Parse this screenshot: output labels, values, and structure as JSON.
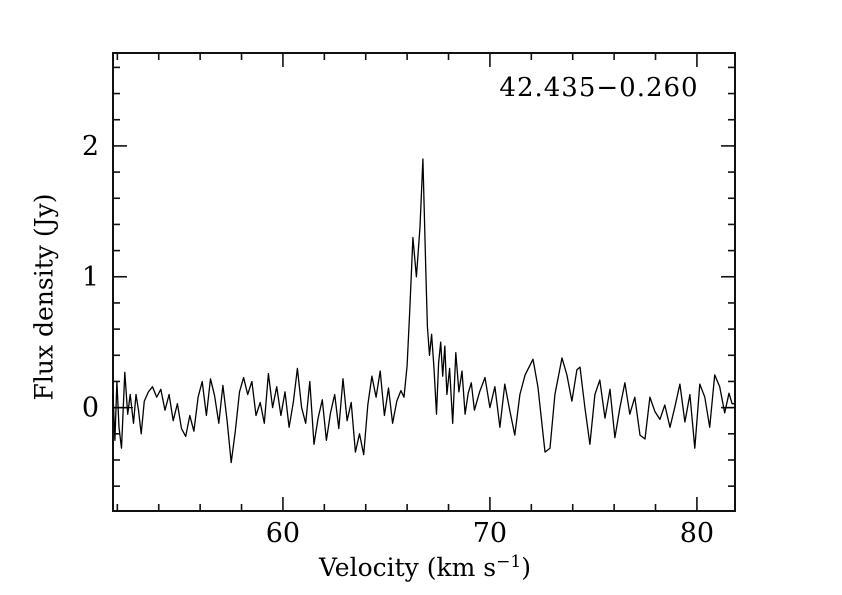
{
  "figure": {
    "title": "42.435−0.260",
    "ylabel": "Flux density (Jy)",
    "xlabel": {
      "pre": "Velocity (km s",
      "sup": "−1",
      "post": ")"
    }
  },
  "chart_data": {
    "type": "line",
    "title": "42.435−0.260",
    "xlabel": "Velocity (km s^-1)",
    "ylabel": "Flux density (Jy)",
    "xlim": [
      51.79,
      81.84
    ],
    "ylim": [
      -0.79,
      2.71
    ],
    "x_major_ticks": [
      {
        "value": 60,
        "label": "60"
      },
      {
        "value": 70,
        "label": "70"
      },
      {
        "value": 80,
        "label": "80"
      }
    ],
    "x_minor_tick_step": 2,
    "y_major_ticks": [
      {
        "value": 0,
        "label": "0"
      },
      {
        "value": 1,
        "label": "1"
      },
      {
        "value": 2,
        "label": "2"
      }
    ],
    "y_minor_tick_step": 0.2,
    "grid": false,
    "legend_position": "none",
    "line_color": "#000000",
    "frame_color": "#111111",
    "background": "#ffffff",
    "zero_level_markers": [
      {
        "v_start": 51.79,
        "v_end": 52.75,
        "flux": 0.0
      },
      {
        "v_start": 81.35,
        "v_end": 81.84,
        "flux": 0.0
      }
    ],
    "series": [
      {
        "name": "spectrum",
        "points": [
          [
            51.79,
            0.1
          ],
          [
            51.88,
            -0.25
          ],
          [
            51.98,
            0.2
          ],
          [
            52.08,
            -0.15
          ],
          [
            52.2,
            -0.31
          ],
          [
            52.36,
            0.27
          ],
          [
            52.5,
            -0.05
          ],
          [
            52.62,
            0.1
          ],
          [
            52.78,
            -0.12
          ],
          [
            52.9,
            0.1
          ],
          [
            53.02,
            -0.02
          ],
          [
            53.15,
            -0.2
          ],
          [
            53.3,
            0.05
          ],
          [
            53.5,
            0.12
          ],
          [
            53.7,
            0.16
          ],
          [
            53.9,
            0.08
          ],
          [
            54.1,
            0.14
          ],
          [
            54.3,
            -0.02
          ],
          [
            54.5,
            0.1
          ],
          [
            54.7,
            -0.1
          ],
          [
            54.9,
            0.03
          ],
          [
            55.1,
            -0.16
          ],
          [
            55.3,
            -0.22
          ],
          [
            55.5,
            -0.06
          ],
          [
            55.7,
            -0.18
          ],
          [
            55.9,
            0.08
          ],
          [
            56.1,
            0.2
          ],
          [
            56.3,
            -0.06
          ],
          [
            56.5,
            0.22
          ],
          [
            56.7,
            0.09
          ],
          [
            56.9,
            -0.12
          ],
          [
            57.1,
            0.17
          ],
          [
            57.3,
            -0.1
          ],
          [
            57.5,
            -0.42
          ],
          [
            57.7,
            -0.18
          ],
          [
            57.9,
            0.12
          ],
          [
            58.1,
            0.23
          ],
          [
            58.3,
            0.1
          ],
          [
            58.5,
            0.2
          ],
          [
            58.7,
            -0.06
          ],
          [
            58.9,
            0.04
          ],
          [
            59.1,
            -0.12
          ],
          [
            59.3,
            0.26
          ],
          [
            59.5,
            0.0
          ],
          [
            59.7,
            0.16
          ],
          [
            59.9,
            -0.06
          ],
          [
            60.1,
            0.12
          ],
          [
            60.3,
            -0.15
          ],
          [
            60.5,
            0.04
          ],
          [
            60.7,
            0.3
          ],
          [
            60.9,
            0.0
          ],
          [
            61.1,
            -0.12
          ],
          [
            61.3,
            0.2
          ],
          [
            61.5,
            -0.28
          ],
          [
            61.7,
            -0.08
          ],
          [
            61.9,
            0.06
          ],
          [
            62.1,
            -0.25
          ],
          [
            62.3,
            -0.04
          ],
          [
            62.5,
            0.1
          ],
          [
            62.7,
            -0.16
          ],
          [
            62.9,
            0.22
          ],
          [
            63.1,
            -0.1
          ],
          [
            63.3,
            0.04
          ],
          [
            63.5,
            -0.34
          ],
          [
            63.7,
            -0.2
          ],
          [
            63.9,
            -0.36
          ],
          [
            64.1,
            0.02
          ],
          [
            64.3,
            0.24
          ],
          [
            64.5,
            0.08
          ],
          [
            64.7,
            0.28
          ],
          [
            64.9,
            -0.06
          ],
          [
            65.1,
            0.15
          ],
          [
            65.3,
            -0.12
          ],
          [
            65.5,
            0.05
          ],
          [
            65.7,
            0.13
          ],
          [
            65.85,
            0.08
          ],
          [
            66.0,
            0.32
          ],
          [
            66.13,
            0.75
          ],
          [
            66.28,
            1.3
          ],
          [
            66.45,
            1.0
          ],
          [
            66.62,
            1.38
          ],
          [
            66.76,
            1.9
          ],
          [
            66.9,
            1.05
          ],
          [
            66.98,
            0.62
          ],
          [
            67.08,
            0.4
          ],
          [
            67.18,
            0.56
          ],
          [
            67.3,
            0.3
          ],
          [
            67.42,
            -0.05
          ],
          [
            67.52,
            0.34
          ],
          [
            67.62,
            0.5
          ],
          [
            67.72,
            0.24
          ],
          [
            67.82,
            0.47
          ],
          [
            67.92,
            0.1
          ],
          [
            68.05,
            0.3
          ],
          [
            68.2,
            -0.12
          ],
          [
            68.35,
            0.42
          ],
          [
            68.5,
            0.12
          ],
          [
            68.65,
            0.28
          ],
          [
            68.8,
            -0.05
          ],
          [
            68.95,
            0.11
          ],
          [
            69.1,
            0.19
          ],
          [
            69.25,
            -0.02
          ],
          [
            69.5,
            0.12
          ],
          [
            69.76,
            0.23
          ],
          [
            70.0,
            0.0
          ],
          [
            70.24,
            0.16
          ],
          [
            70.48,
            -0.15
          ],
          [
            70.72,
            0.18
          ],
          [
            70.97,
            -0.03
          ],
          [
            71.2,
            -0.21
          ],
          [
            71.45,
            0.1
          ],
          [
            71.7,
            0.25
          ],
          [
            72.08,
            0.37
          ],
          [
            72.32,
            0.16
          ],
          [
            72.66,
            -0.34
          ],
          [
            72.9,
            -0.31
          ],
          [
            73.14,
            0.1
          ],
          [
            73.48,
            0.38
          ],
          [
            73.72,
            0.25
          ],
          [
            73.96,
            0.05
          ],
          [
            74.2,
            0.29
          ],
          [
            74.35,
            0.31
          ],
          [
            74.59,
            0.0
          ],
          [
            74.83,
            -0.28
          ],
          [
            75.07,
            0.1
          ],
          [
            75.31,
            0.21
          ],
          [
            75.56,
            -0.08
          ],
          [
            75.8,
            0.14
          ],
          [
            76.04,
            -0.23
          ],
          [
            76.28,
            0.0
          ],
          [
            76.52,
            0.19
          ],
          [
            76.76,
            -0.05
          ],
          [
            77.0,
            0.08
          ],
          [
            77.25,
            -0.21
          ],
          [
            77.49,
            -0.24
          ],
          [
            77.73,
            0.08
          ],
          [
            77.97,
            -0.03
          ],
          [
            78.21,
            -0.09
          ],
          [
            78.45,
            0.02
          ],
          [
            78.7,
            -0.15
          ],
          [
            78.94,
            0.01
          ],
          [
            79.18,
            0.18
          ],
          [
            79.42,
            -0.11
          ],
          [
            79.66,
            0.1
          ],
          [
            79.9,
            -0.31
          ],
          [
            80.14,
            0.18
          ],
          [
            80.38,
            0.08
          ],
          [
            80.62,
            -0.15
          ],
          [
            80.86,
            0.25
          ],
          [
            81.1,
            0.16
          ],
          [
            81.34,
            -0.04
          ],
          [
            81.55,
            0.11
          ],
          [
            81.7,
            0.03
          ],
          [
            81.84,
            0.03
          ]
        ]
      }
    ]
  }
}
